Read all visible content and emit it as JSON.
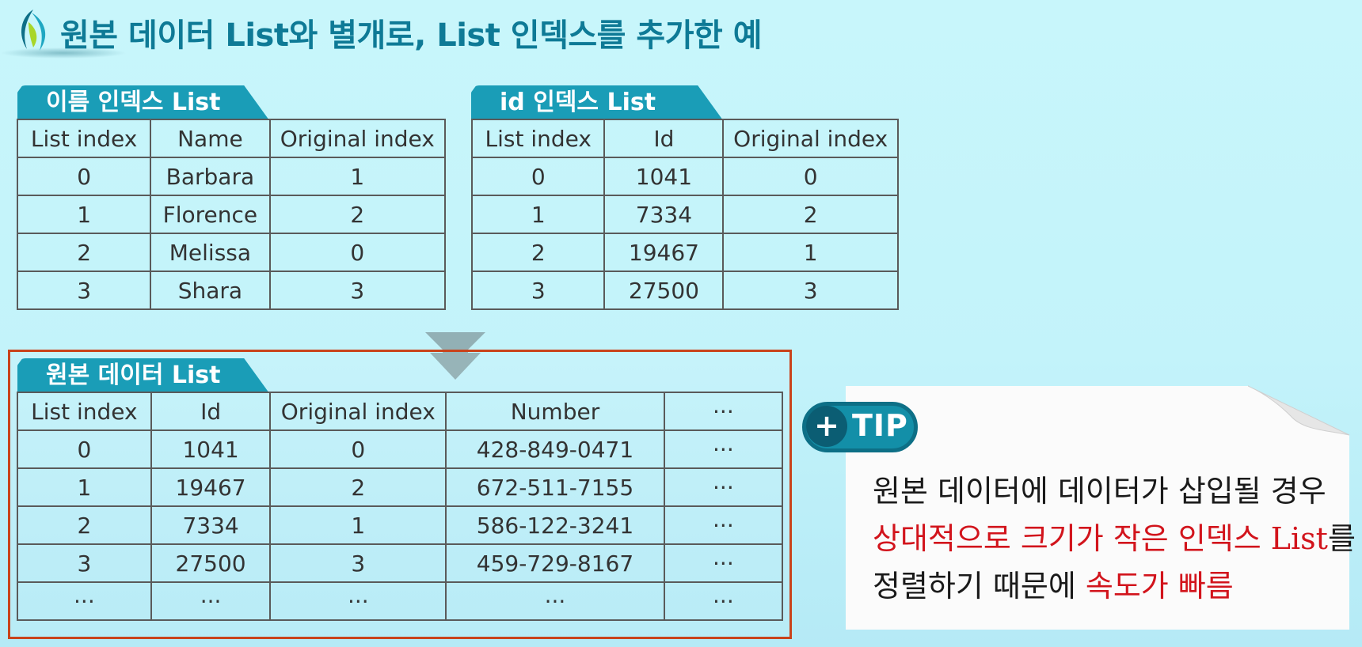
{
  "title": "원본 데이터 List와 별개로, List 인덱스를 추가한 예",
  "name_index_table": {
    "label": "이름 인덱스 List",
    "headers": [
      "List index",
      "Name",
      "Original index"
    ],
    "rows": [
      [
        "0",
        "Barbara",
        "1"
      ],
      [
        "1",
        "Florence",
        "2"
      ],
      [
        "2",
        "Melissa",
        "0"
      ],
      [
        "3",
        "Shara",
        "3"
      ]
    ]
  },
  "id_index_table": {
    "label": "id 인덱스 List",
    "headers": [
      "List index",
      "Id",
      "Original index"
    ],
    "rows": [
      [
        "0",
        "1041",
        "0"
      ],
      [
        "1",
        "7334",
        "2"
      ],
      [
        "2",
        "19467",
        "1"
      ],
      [
        "3",
        "27500",
        "3"
      ]
    ]
  },
  "original_table": {
    "label": "원본 데이터 List",
    "headers": [
      "List index",
      "Id",
      "Original index",
      "Number",
      "···"
    ],
    "rows": [
      [
        "0",
        "1041",
        "0",
        "428-849-0471",
        "···"
      ],
      [
        "1",
        "19467",
        "2",
        "672-511-7155",
        "···"
      ],
      [
        "2",
        "7334",
        "1",
        "586-122-3241",
        "···"
      ],
      [
        "3",
        "27500",
        "3",
        "459-729-8167",
        "···"
      ],
      [
        "···",
        "···",
        "···",
        "···",
        "···"
      ]
    ]
  },
  "tip": {
    "badge_plus": "+",
    "badge_text": "TIP",
    "line1": "원본 데이터에 데이터가 삽입될 경우",
    "line2_red": "상대적으로 크기가 작은 인덱스 List",
    "line2_black": "를",
    "line3_black": "정렬하기 때문에 ",
    "line3_red": "속도가 빠름"
  },
  "colors": {
    "title": "#0e7a96",
    "tab": "#1a9db7",
    "frame": "#c9431b",
    "tip_red": "#d2141c",
    "tip_text": "#1a1a1a"
  }
}
